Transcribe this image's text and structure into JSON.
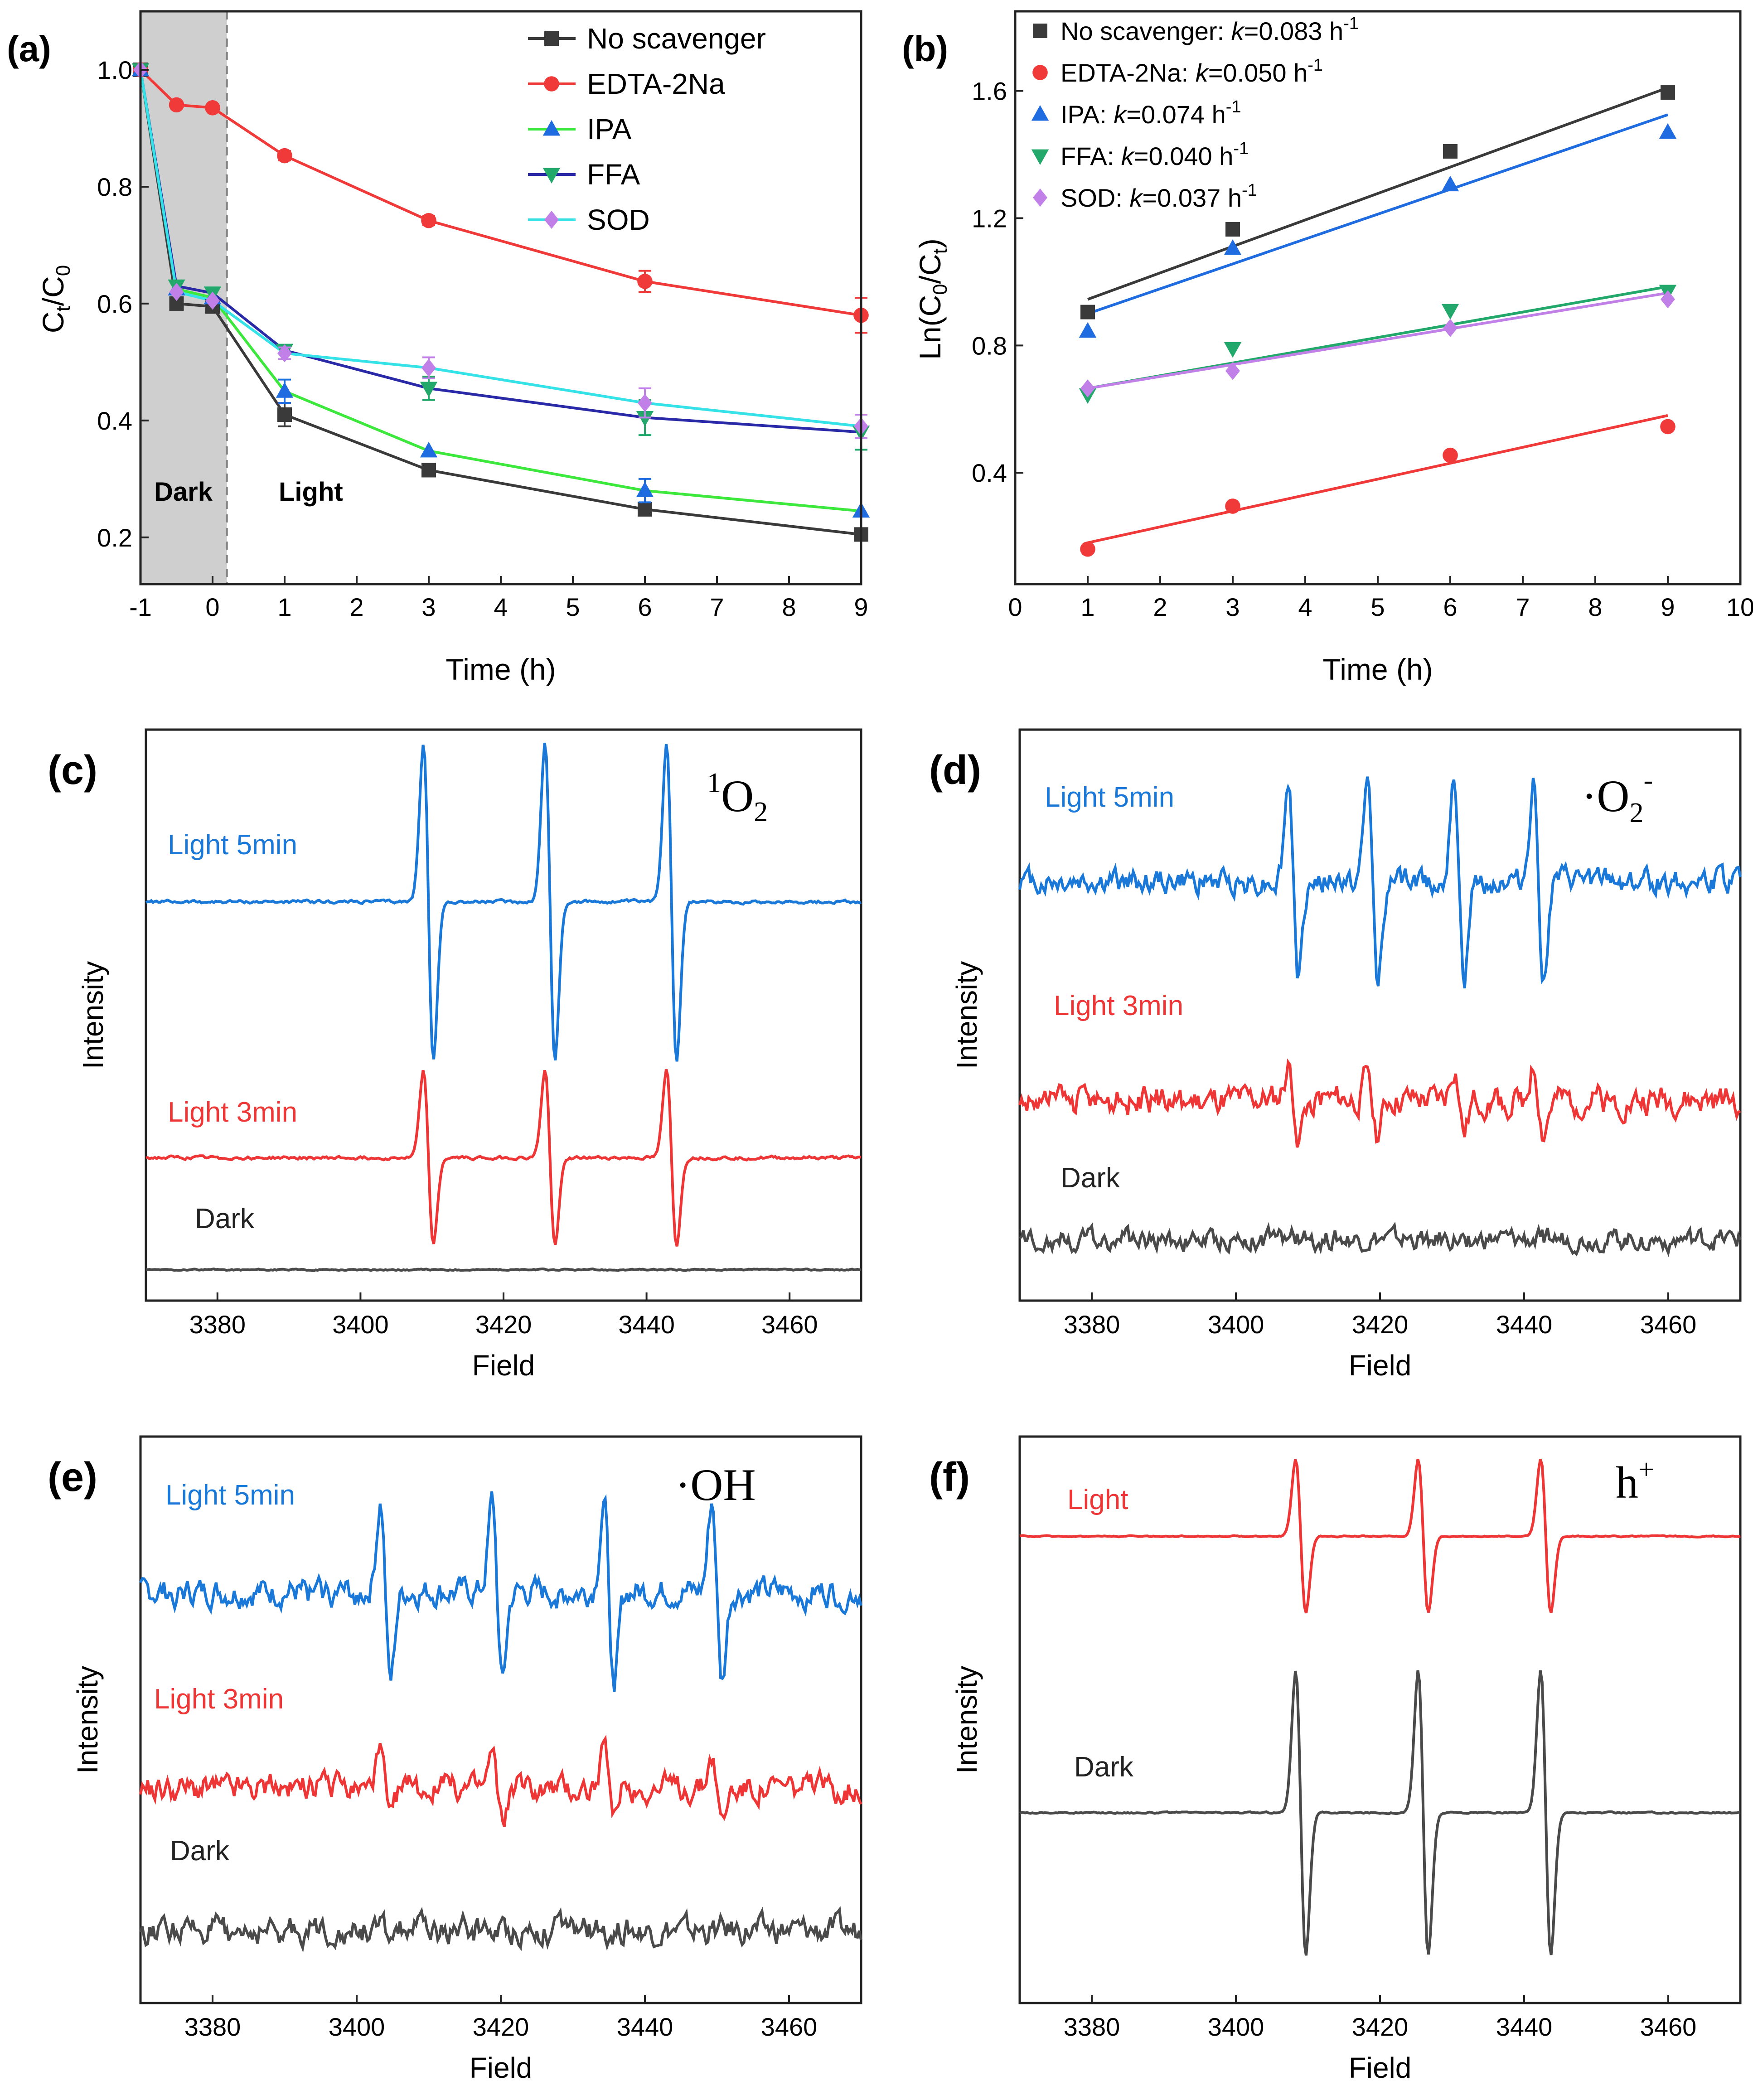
{
  "colors": {
    "black": "#3a3a3a",
    "red": "#f03a3a",
    "green": "#3de83d",
    "blue": "#1f6be0",
    "navy": "#2a2aa8",
    "cyan": "#35e2e8",
    "purple": "#c080e8",
    "teal": "#22a86a",
    "esr_blue": "#1a78d8",
    "esr_red": "#ee3636",
    "esr_gray": "#4a4a4a",
    "dark_region": "#cfcfcf"
  },
  "chart_data": [
    {
      "panel": "(a)",
      "type": "line",
      "xlabel": "Time (h)",
      "ylabel_main": "C",
      "ylabel_sub1": "t",
      "ylabel_slash": "/C",
      "ylabel_sub2": "0",
      "xlim": [
        -1,
        9
      ],
      "ylim": [
        0.12,
        1.1
      ],
      "xticks": [
        "-1",
        "0",
        "1",
        "2",
        "3",
        "4",
        "5",
        "6",
        "7",
        "8",
        "9"
      ],
      "yticks": [
        "0.2",
        "0.4",
        "0.6",
        "0.8",
        "1.0"
      ],
      "region_labels": {
        "dark": "Dark",
        "light": "Light"
      },
      "x": [
        -1,
        -0.5,
        0,
        1,
        3,
        6,
        9
      ],
      "series": [
        {
          "name": "No scavenger",
          "color": "black",
          "marker": "square",
          "values": [
            1.0,
            0.6,
            0.595,
            0.41,
            0.315,
            0.248,
            0.205
          ],
          "err": [
            0,
            0,
            0,
            0.02,
            0,
            0,
            0
          ]
        },
        {
          "name": "EDTA-2Na",
          "color": "red",
          "marker": "circle",
          "values": [
            1.0,
            0.94,
            0.935,
            0.853,
            0.742,
            0.638,
            0.58
          ],
          "err": [
            0,
            0,
            0,
            0.008,
            0.008,
            0.018,
            0.03
          ]
        },
        {
          "name": "IPA",
          "color": "green",
          "line_color": "green",
          "marker_color": "blue",
          "marker": "triangle-up",
          "values": [
            1.0,
            0.625,
            0.61,
            0.45,
            0.348,
            0.28,
            0.245
          ],
          "err": [
            0,
            0,
            0,
            0.02,
            0,
            0.02,
            0
          ]
        },
        {
          "name": "FFA",
          "color": "navy",
          "marker_color": "teal",
          "marker": "triangle-down",
          "values": [
            1.0,
            0.63,
            0.618,
            0.52,
            0.455,
            0.405,
            0.38
          ],
          "err": [
            0,
            0,
            0,
            0,
            0.02,
            0.03,
            0.03
          ]
        },
        {
          "name": "SOD",
          "color": "cyan",
          "marker_color": "purple",
          "marker": "diamond",
          "values": [
            1.0,
            0.62,
            0.605,
            0.515,
            0.49,
            0.43,
            0.39
          ],
          "err": [
            0,
            0,
            0,
            0.01,
            0.018,
            0.025,
            0.02
          ]
        }
      ]
    },
    {
      "panel": "(b)",
      "type": "scatter",
      "xlabel": "Time (h)",
      "ylabel_pre": "Ln(C",
      "ylabel_sub1": "0",
      "ylabel_mid": "/C",
      "ylabel_sub2": "t",
      "ylabel_post": ")",
      "xlim": [
        0,
        10
      ],
      "ylim": [
        0.05,
        1.85
      ],
      "xticks": [
        "0",
        "1",
        "2",
        "3",
        "4",
        "5",
        "6",
        "7",
        "8",
        "9",
        "10"
      ],
      "yticks": [
        "0.4",
        "0.8",
        "1.2",
        "1.6"
      ],
      "x": [
        1,
        3,
        6,
        9
      ],
      "series": [
        {
          "name": "No scavenger: ",
          "kval": "=0.083 h",
          "color": "black",
          "marker": "square",
          "values": [
            0.905,
            1.165,
            1.41,
            1.595
          ],
          "fit": [
            0.945,
            1.61
          ]
        },
        {
          "name": "EDTA-2Na: ",
          "kval": "=0.050 h",
          "color": "red",
          "marker": "circle",
          "values": [
            0.16,
            0.295,
            0.455,
            0.545
          ],
          "fit": [
            0.18,
            0.58
          ]
        },
        {
          "name": "IPA: ",
          "kval": "=0.074 h",
          "color": "blue",
          "marker": "triangle-up",
          "values": [
            0.845,
            1.105,
            1.305,
            1.47
          ],
          "fit": [
            0.9,
            1.525
          ]
        },
        {
          "name": "FFA: ",
          "kval": "=0.040 h",
          "color": "teal",
          "marker": "triangle-down",
          "values": [
            0.645,
            0.79,
            0.91,
            0.97
          ],
          "fit": [
            0.665,
            0.985
          ]
        },
        {
          "name": "SOD: ",
          "kval": "=0.037 h",
          "color": "purple",
          "marker": "diamond",
          "values": [
            0.665,
            0.72,
            0.855,
            0.945
          ],
          "fit": [
            0.665,
            0.965
          ]
        }
      ],
      "k_label": "k",
      "k_unit_sup": "-1"
    },
    {
      "panel": "(c)",
      "type": "line",
      "xlabel": "Field",
      "ylabel": "Intensity",
      "xlim": [
        3370,
        3470
      ],
      "xticks": [
        "3380",
        "3400",
        "3420",
        "3440",
        "3460"
      ],
      "species": "1O2",
      "species_sup": "1",
      "species_main": "O",
      "species_sub": "2",
      "series": [
        {
          "name": "Light 5min",
          "color": "esr_blue",
          "peaks": [
            3409.5,
            3426.5,
            3443.5
          ],
          "amp": 1.0,
          "noise": 0.02
        },
        {
          "name": "Light 3min",
          "color": "esr_red",
          "peaks": [
            3409.5,
            3426.5,
            3443.5
          ],
          "amp": 0.55,
          "noise": 0.02
        },
        {
          "name": "Dark",
          "color": "esr_gray",
          "peaks": [],
          "amp": 0,
          "noise": 0.02
        }
      ]
    },
    {
      "panel": "(d)",
      "type": "line",
      "xlabel": "Field",
      "ylabel": "Intensity",
      "xlim": [
        3370,
        3470
      ],
      "xticks": [
        "3380",
        "3400",
        "3420",
        "3440",
        "3460"
      ],
      "species": "·O2-",
      "species_main": "·O",
      "species_sub": "2",
      "species_sup": "-",
      "series": [
        {
          "name": "Light 5min",
          "color": "esr_blue",
          "peaks": [
            3408,
            3419,
            3431,
            3442
          ],
          "amp": 1.0,
          "noise": 0.25
        },
        {
          "name": "Light 3min",
          "color": "esr_red",
          "peaks": [
            3408,
            3419,
            3431,
            3442
          ],
          "amp": 0.35,
          "noise": 0.3
        },
        {
          "name": "Dark",
          "color": "esr_gray",
          "peaks": [],
          "amp": 0,
          "noise": 0.25
        }
      ]
    },
    {
      "panel": "(e)",
      "type": "line",
      "xlabel": "Field",
      "ylabel": "Intensity",
      "xlim": [
        3370,
        3470
      ],
      "xticks": [
        "3380",
        "3400",
        "3420",
        "3440",
        "3460"
      ],
      "species": "·OH",
      "species_main": "·OH",
      "series": [
        {
          "name": "Light 5min",
          "color": "esr_blue",
          "peaks": [
            3404,
            3419.5,
            3435,
            3450
          ],
          "amp": 1.0,
          "noise": 0.3
        },
        {
          "name": "Light 3min",
          "color": "esr_red",
          "peaks": [
            3404,
            3419.5,
            3435,
            3450
          ],
          "amp": 0.45,
          "noise": 0.35
        },
        {
          "name": "Dark",
          "color": "esr_gray",
          "peaks": [],
          "amp": 0,
          "noise": 0.35
        }
      ]
    },
    {
      "panel": "(f)",
      "type": "line",
      "xlabel": "Field",
      "ylabel": "Intensity",
      "xlim": [
        3370,
        3470
      ],
      "xticks": [
        "3380",
        "3400",
        "3420",
        "3440",
        "3460"
      ],
      "species": "h+",
      "species_main": "h",
      "species_sup": "+",
      "series": [
        {
          "name": "Light",
          "color": "esr_red",
          "peaks": [
            3409,
            3426,
            3443
          ],
          "amp": 0.7,
          "noise": 0.01
        },
        {
          "name": "Dark",
          "color": "esr_gray",
          "peaks": [
            3409,
            3426,
            3443
          ],
          "amp": 1.0,
          "noise": 0.01
        }
      ]
    }
  ]
}
